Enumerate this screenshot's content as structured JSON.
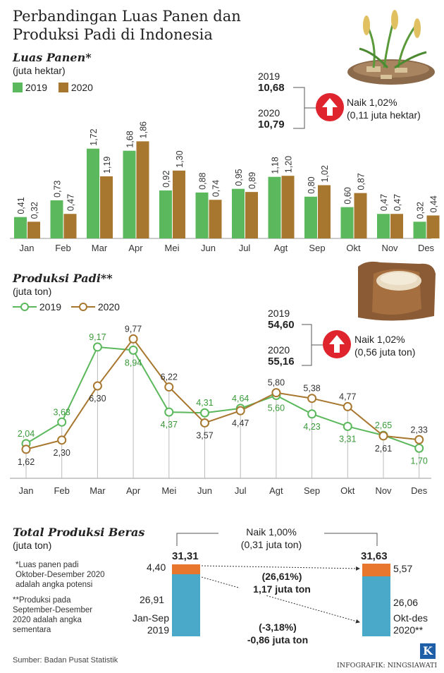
{
  "title_line1": "Perbandingan Luas Panen dan",
  "title_line2": "Produksi Padi di Indonesia",
  "colors": {
    "green": "#5cb85c",
    "brown": "#a8772f",
    "red": "#e0242e",
    "orange": "#e8762c",
    "blue": "#4aa9c9"
  },
  "icons": {
    "rice_plant": "rice-plant-illustration",
    "rice_sack": "rice-sack-illustration",
    "up_arrow": "up-arrow-icon",
    "logo": "kompas-k-logo"
  },
  "harvest": {
    "title": "Luas Panen*",
    "unit": "(juta hektar)",
    "legend_2019": "2019",
    "legend_2020": "2020",
    "total_2019_year": "2019",
    "total_2019_value": "10,68",
    "total_2020_year": "2020",
    "total_2020_value": "10,79",
    "change_line1": "Naik 1,02%",
    "change_line2": "(0,11 juta hektar)"
  },
  "production": {
    "title": "Produksi Padi**",
    "unit": "(juta ton)",
    "legend_2019": "2019",
    "legend_2020": "2020",
    "total_2019_year": "2019",
    "total_2019_value": "54,60",
    "total_2020_year": "2020",
    "total_2020_value": "55,16",
    "change_line1": "Naik 1,02%",
    "change_line2": "(0,56 juta ton)"
  },
  "rice": {
    "title": "Total Produksi Beras",
    "unit": "(juta ton)",
    "change_line1": "Naik 1,00%",
    "change_line2": "(0,31 juta ton)",
    "left_total": "31,31",
    "left_top": "4,40",
    "left_bottom": "26,91",
    "left_period_line1": "Jan-Sep",
    "left_period_line2": "2019",
    "right_total": "31,63",
    "right_top": "5,57",
    "right_bottom": "26,06",
    "right_period_line1": "Okt-des",
    "right_period_line2": "2020**",
    "mid_top_line1": "(26,61%)",
    "mid_top_line2": "1,17 juta ton",
    "mid_bottom_line1": "(-3,18%)",
    "mid_bottom_line2": "-0,86 juta ton"
  },
  "notes": {
    "note1_line1": "*Luas panen padi",
    "note1_line2": "Oktober-Desember 2020",
    "note1_line3": "adalah angka potensi",
    "note2_line1": "**Produksi pada",
    "note2_line2": "September-Desember",
    "note2_line3": "2020 adalah angka",
    "note2_line4": "sementara"
  },
  "source": "Sumber: Badan Pusat Statistik",
  "credit": "INFOGRAFIK: NINGSIAWATI",
  "chart_data": [
    {
      "type": "bar",
      "title": "Luas Panen*",
      "ylabel": "(juta hektar)",
      "categories": [
        "Jan",
        "Feb",
        "Mar",
        "Apr",
        "Mei",
        "Jun",
        "Jul",
        "Agt",
        "Sep",
        "Okt",
        "Nov",
        "Des"
      ],
      "series": [
        {
          "name": "2019",
          "values": [
            0.41,
            0.73,
            1.72,
            1.68,
            0.92,
            0.88,
            0.95,
            1.18,
            0.8,
            0.6,
            0.47,
            0.32
          ],
          "labels": [
            "0,41",
            "0,73",
            "1,72",
            "1,68",
            "0,92",
            "0,88",
            "0,95",
            "1,18",
            "0,80",
            "0,60",
            "0,47",
            "0,32"
          ]
        },
        {
          "name": "2020",
          "values": [
            0.32,
            0.47,
            1.19,
            1.86,
            1.3,
            0.74,
            0.89,
            1.2,
            1.02,
            0.87,
            0.47,
            0.44
          ],
          "labels": [
            "0,32",
            "0,47",
            "1,19",
            "1,86",
            "1,30",
            "0,74",
            "0,89",
            "1,20",
            "1,02",
            "0,87",
            "0,47",
            "0,44"
          ]
        }
      ]
    },
    {
      "type": "line",
      "title": "Produksi Padi**",
      "ylabel": "(juta ton)",
      "categories": [
        "Jan",
        "Feb",
        "Mar",
        "Apr",
        "Mei",
        "Jun",
        "Jul",
        "Agt",
        "Sep",
        "Okt",
        "Nov",
        "Des"
      ],
      "series": [
        {
          "name": "2019",
          "values": [
            2.04,
            3.63,
            9.17,
            8.94,
            4.37,
            4.31,
            4.64,
            5.6,
            4.23,
            3.31,
            2.65,
            1.7
          ],
          "labels": [
            "2,04",
            "3,63",
            "9,17",
            "8,94",
            "4,37",
            "4,31",
            "4,64",
            "5,60",
            "4,23",
            "3,31",
            "2,65",
            "1,70"
          ]
        },
        {
          "name": "2020",
          "values": [
            1.62,
            2.3,
            6.3,
            9.77,
            6.22,
            3.57,
            4.47,
            5.8,
            5.38,
            4.77,
            2.61,
            2.33
          ],
          "labels": [
            "1,62",
            "2,30",
            "6,30",
            "9,77",
            "6,22",
            "3,57",
            "4,47",
            "5,80",
            "5,38",
            "4,77",
            "2,61",
            "2,33"
          ]
        }
      ]
    },
    {
      "type": "bar",
      "title": "Total Produksi Beras",
      "ylabel": "(juta ton)",
      "categories": [
        "Jan-Sep 2019",
        "Okt-des 2020**"
      ],
      "series": [
        {
          "name": "Jan-Sep",
          "values": [
            26.91,
            26.06
          ]
        },
        {
          "name": "Okt-des",
          "values": [
            4.4,
            5.57
          ]
        }
      ],
      "totals": [
        31.31,
        31.63
      ]
    }
  ]
}
